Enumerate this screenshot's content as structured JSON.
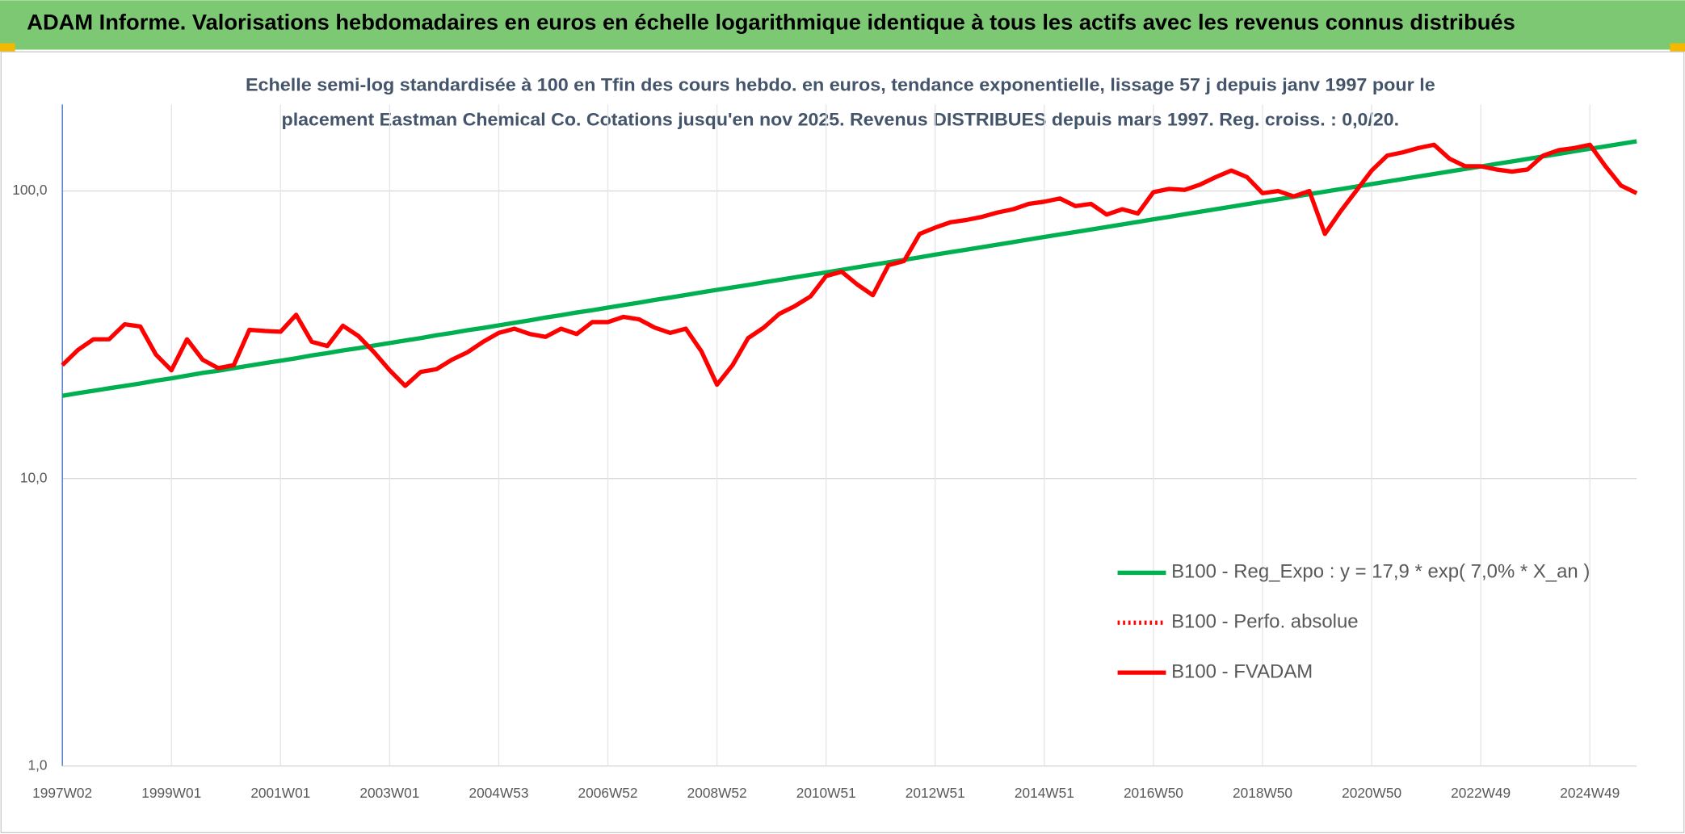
{
  "header": {
    "title": "ADAM Informe. Valorisations hebdomadaires en euros en échelle logarithmique identique à tous les actifs avec les revenus connus distribués"
  },
  "chart_data": {
    "type": "line",
    "title": [
      "Echelle semi-log standardisée à 100 en Tfin des cours hebdo. en euros, tendance exponentielle, lissage 57 j depuis janv 1997 pour le",
      "placement Eastman Chemical Co. Cotations jusqu'en nov 2025. Revenus DISTRIBUES depuis mars 1997. Reg. croiss. : 0,0/20."
    ],
    "log_y": true,
    "grid": true,
    "legend": "right",
    "ylim": [
      1,
      200
    ],
    "yticks": [
      {
        "value": 1,
        "label": "1,0"
      },
      {
        "value": 10,
        "label": "10,0"
      },
      {
        "value": 100,
        "label": "100,0"
      }
    ],
    "categories": [
      "1997W02",
      null,
      null,
      null,
      null,
      null,
      null,
      "1999W01",
      null,
      null,
      null,
      null,
      null,
      null,
      "2001W01",
      null,
      null,
      null,
      null,
      null,
      null,
      "2003W01",
      null,
      null,
      null,
      null,
      null,
      null,
      "2004W53",
      null,
      null,
      null,
      null,
      null,
      null,
      "2006W52",
      null,
      null,
      null,
      null,
      null,
      null,
      "2008W52",
      null,
      null,
      null,
      null,
      null,
      null,
      "2010W51",
      null,
      null,
      null,
      null,
      null,
      null,
      "2012W51",
      null,
      null,
      null,
      null,
      null,
      null,
      "2014W51",
      null,
      null,
      null,
      null,
      null,
      null,
      "2016W50",
      null,
      null,
      null,
      null,
      null,
      null,
      "2018W50",
      null,
      null,
      null,
      null,
      null,
      null,
      "2020W50",
      null,
      null,
      null,
      null,
      null,
      null,
      "2022W49",
      null,
      null,
      null,
      null,
      null,
      null,
      "2024W49",
      null,
      null,
      null
    ],
    "series": [
      {
        "name": "B100 - Reg_Expo : y = 17,9 * exp( 7,0% *  X_an )",
        "color": "#00b050",
        "line_style": "solid",
        "values": [
          19.4,
          19.8,
          20.2,
          20.6,
          21.0,
          21.4,
          21.9,
          22.3,
          22.8,
          23.3,
          23.7,
          24.2,
          24.7,
          25.2,
          25.7,
          26.2,
          26.8,
          27.3,
          27.9,
          28.4,
          29.0,
          29.6,
          30.2,
          30.8,
          31.5,
          32.1,
          32.8,
          33.4,
          34.1,
          34.8,
          35.5,
          36.3,
          37.0,
          37.8,
          38.5,
          39.3,
          40.1,
          40.9,
          41.8,
          42.6,
          43.5,
          44.4,
          45.3,
          46.2,
          47.1,
          48.1,
          49.1,
          50.1,
          51.1,
          52.1,
          53.2,
          54.3,
          55.4,
          56.5,
          57.6,
          58.8,
          60.1,
          61.3,
          62.5,
          63.8,
          65.1,
          66.4,
          67.8,
          69.2,
          70.6,
          72.0,
          73.5,
          75.0,
          76.5,
          78.1,
          79.7,
          81.3,
          83.0,
          84.7,
          86.4,
          88.2,
          90.0,
          91.8,
          93.6,
          95.5,
          97.5,
          99.5,
          101.5,
          103.6,
          105.7,
          107.9,
          110.1,
          112.3,
          114.6,
          116.9,
          119.3,
          121.7,
          124.2,
          126.7,
          129.3,
          131.9,
          134.6,
          137.4,
          140.2,
          143.0,
          145.9,
          148.9
        ]
      },
      {
        "name": "B100 - Perfo. absolue",
        "color": "#ff0000",
        "line_style": "dotted",
        "values": [
          24.8,
          28.0,
          30.5,
          30.5,
          34.4,
          33.8,
          27.0,
          23.8,
          30.5,
          25.9,
          24.2,
          24.8,
          32.9,
          32.6,
          32.4,
          37.1,
          29.9,
          28.9,
          34.0,
          31.3,
          27.5,
          23.8,
          21.0,
          23.5,
          24.0,
          25.9,
          27.5,
          29.9,
          32.1,
          33.2,
          31.8,
          31.1,
          33.2,
          31.8,
          35.0,
          35.0,
          36.5,
          35.8,
          33.5,
          32.1,
          33.2,
          27.7,
          21.2,
          24.8,
          30.8,
          33.5,
          37.4,
          39.8,
          43.0,
          50.6,
          52.4,
          47.3,
          43.4,
          55.2,
          57.1,
          70.9,
          74.6,
          77.9,
          79.3,
          81.3,
          84.2,
          86.4,
          90.2,
          91.8,
          94.2,
          88.6,
          90.2,
          82.8,
          86.4,
          83.5,
          99.1,
          101.7,
          100.9,
          105.3,
          111.8,
          117.8,
          111.8,
          98.3,
          100.0,
          95.8,
          100.0,
          70.9,
          84.9,
          100.0,
          117.8,
          132.8,
          136.3,
          141.1,
          144.8,
          129.5,
          121.9,
          121.9,
          118.8,
          116.8,
          118.8,
          132.8,
          138.7,
          141.1,
          144.8,
          121.9,
          104.4,
          98.3
        ]
      },
      {
        "name": "B100 - FVADAM",
        "color": "#ff0000",
        "line_style": "solid",
        "values": [
          24.8,
          28.0,
          30.5,
          30.5,
          34.4,
          33.8,
          27.0,
          23.8,
          30.5,
          25.9,
          24.2,
          24.8,
          32.9,
          32.6,
          32.4,
          37.1,
          29.9,
          28.9,
          34.0,
          31.3,
          27.5,
          23.8,
          21.0,
          23.5,
          24.0,
          25.9,
          27.5,
          29.9,
          32.1,
          33.2,
          31.8,
          31.1,
          33.2,
          31.8,
          35.0,
          35.0,
          36.5,
          35.8,
          33.5,
          32.1,
          33.2,
          27.7,
          21.2,
          24.8,
          30.8,
          33.5,
          37.4,
          39.8,
          43.0,
          50.6,
          52.4,
          47.3,
          43.4,
          55.2,
          57.1,
          70.9,
          74.6,
          77.9,
          79.3,
          81.3,
          84.2,
          86.4,
          90.2,
          91.8,
          94.2,
          88.6,
          90.2,
          82.8,
          86.4,
          83.5,
          99.1,
          101.7,
          100.9,
          105.3,
          111.8,
          117.8,
          111.8,
          98.3,
          100.0,
          95.8,
          100.0,
          70.9,
          84.9,
          100.0,
          117.8,
          132.8,
          136.3,
          141.1,
          144.8,
          129.5,
          121.9,
          121.9,
          118.8,
          116.8,
          118.8,
          132.8,
          138.7,
          141.1,
          144.8,
          121.9,
          104.4,
          98.3
        ]
      }
    ]
  }
}
